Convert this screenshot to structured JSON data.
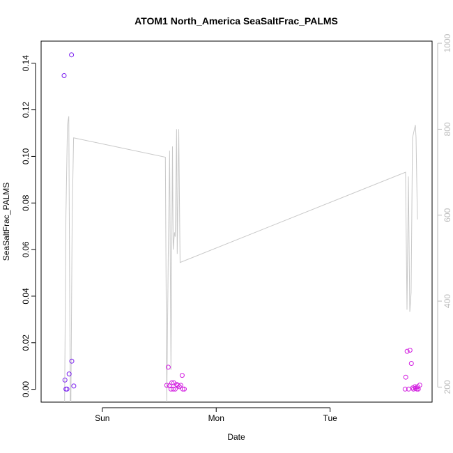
{
  "chart_data": {
    "type": "scatter",
    "title": "ATOM1 North_America SeaSaltFrac_PALMS",
    "xlabel": "Date",
    "ylabel": "SeaSaltFrac_PALMS",
    "x_ticks": [
      "Sun",
      "Mon",
      "Tue"
    ],
    "x_tick_values": [
      0,
      1,
      2
    ],
    "xlim": [
      -0.537,
      2.895
    ],
    "ylim": [
      -0.0055,
      0.1495
    ],
    "y_ticks": [
      0.0,
      0.02,
      0.04,
      0.06,
      0.08,
      0.1,
      0.12,
      0.14
    ],
    "y_tick_labels": [
      "0.00",
      "0.02",
      "0.04",
      "0.06",
      "0.08",
      "0.10",
      "0.12",
      "0.14"
    ],
    "right_axis": {
      "reversed": true,
      "ylim": [
        1005,
        165
      ],
      "ticks": [
        200,
        400,
        600,
        800,
        1000
      ],
      "tick_labels": [
        "200",
        "400",
        "600",
        "800",
        "1000"
      ],
      "color": "#bbbbbb"
    },
    "grid": false,
    "series": [
      {
        "type": "scatter",
        "color": "#7a1ef0",
        "points": [
          {
            "x": -0.335,
            "y": 0.1347
          },
          {
            "x": -0.27,
            "y": 0.1436
          },
          {
            "x": -0.328,
            "y": 0.004
          },
          {
            "x": -0.319,
            "y": 0.0001
          },
          {
            "x": -0.31,
            "y": 0.0001
          },
          {
            "x": -0.291,
            "y": 0.0066
          },
          {
            "x": -0.268,
            "y": 0.0121
          },
          {
            "x": -0.25,
            "y": 0.0014
          }
        ]
      },
      {
        "type": "scatter",
        "color": "#d21ee0",
        "points": [
          {
            "x": 0.566,
            "y": 0.0017
          },
          {
            "x": 0.579,
            "y": 0.0095
          },
          {
            "x": 0.591,
            "y": 0.0015
          },
          {
            "x": 0.603,
            "y": 0.0001
          },
          {
            "x": 0.61,
            "y": 0.0028
          },
          {
            "x": 0.622,
            "y": 0.0001
          },
          {
            "x": 0.628,
            "y": 0.0028
          },
          {
            "x": 0.64,
            "y": 0.0001
          },
          {
            "x": 0.652,
            "y": 0.0021
          },
          {
            "x": 0.664,
            "y": 0.0017
          },
          {
            "x": 0.677,
            "y": 0.0011
          },
          {
            "x": 0.689,
            "y": 0.0017
          },
          {
            "x": 0.701,
            "y": 0.006
          },
          {
            "x": 0.707,
            "y": 0.0001
          },
          {
            "x": 0.72,
            "y": 0.0001
          },
          {
            "x": 2.658,
            "y": 0.0001
          },
          {
            "x": 2.664,
            "y": 0.0052
          },
          {
            "x": 2.676,
            "y": 0.0163
          },
          {
            "x": 2.689,
            "y": 0.0001
          },
          {
            "x": 2.701,
            "y": 0.0168
          },
          {
            "x": 2.713,
            "y": 0.0111
          },
          {
            "x": 2.725,
            "y": 0.0006
          },
          {
            "x": 2.731,
            "y": 0.0001
          },
          {
            "x": 2.744,
            "y": 0.0011
          },
          {
            "x": 2.75,
            "y": 0.0004
          },
          {
            "x": 2.762,
            "y": 0.0001
          },
          {
            "x": 2.768,
            "y": 0.0011
          },
          {
            "x": 2.774,
            "y": 0.0001
          },
          {
            "x": 2.787,
            "y": 0.0018
          }
        ]
      },
      {
        "type": "line",
        "axis": "right",
        "color": "#c8c8c8",
        "points": [
          {
            "x": -0.331,
            "y": 165
          },
          {
            "x": -0.319,
            "y": 600
          },
          {
            "x": -0.306,
            "y": 810
          },
          {
            "x": -0.294,
            "y": 830
          },
          {
            "x": -0.281,
            "y": 165
          },
          {
            "x": -0.276,
            "y": 165
          },
          {
            "x": -0.264,
            "y": 600
          },
          {
            "x": -0.252,
            "y": 780
          },
          {
            "x": 0.554,
            "y": 735
          },
          {
            "x": 0.566,
            "y": 165
          },
          {
            "x": 0.579,
            "y": 500
          },
          {
            "x": 0.591,
            "y": 750
          },
          {
            "x": 0.603,
            "y": 240
          },
          {
            "x": 0.616,
            "y": 760
          },
          {
            "x": 0.622,
            "y": 520
          },
          {
            "x": 0.634,
            "y": 560
          },
          {
            "x": 0.64,
            "y": 550
          },
          {
            "x": 0.652,
            "y": 800
          },
          {
            "x": 0.658,
            "y": 510
          },
          {
            "x": 0.671,
            "y": 800
          },
          {
            "x": 0.683,
            "y": 490
          },
          {
            "x": 2.662,
            "y": 700
          },
          {
            "x": 2.675,
            "y": 380
          },
          {
            "x": 2.687,
            "y": 690
          },
          {
            "x": 2.699,
            "y": 375
          },
          {
            "x": 2.711,
            "y": 420
          },
          {
            "x": 2.723,
            "y": 780
          },
          {
            "x": 2.748,
            "y": 810
          },
          {
            "x": 2.754,
            "y": 780
          },
          {
            "x": 2.766,
            "y": 590
          }
        ]
      }
    ]
  }
}
